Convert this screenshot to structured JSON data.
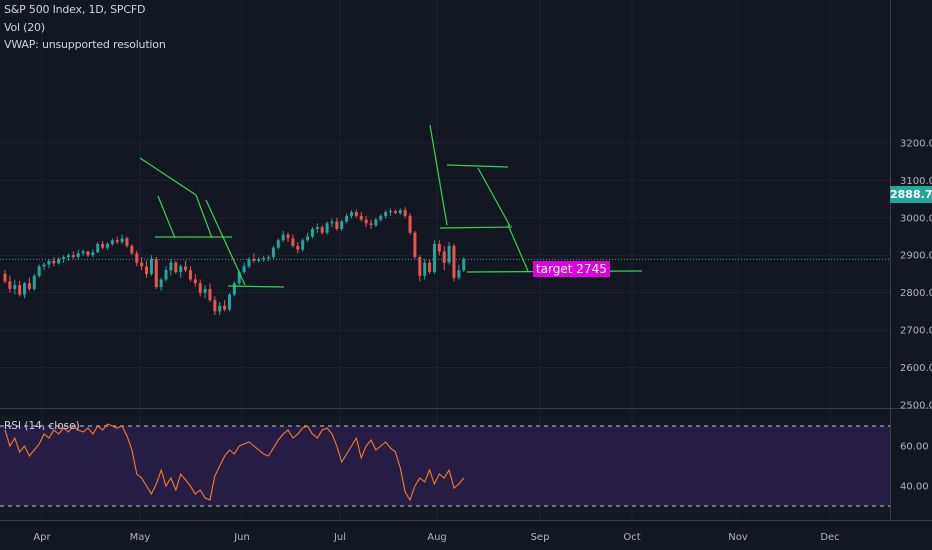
{
  "header": {
    "symbol_line": "S&P 500 Index, 1D, SPCFD",
    "vol_line": "Vol (20)",
    "vwap_line": "VWAP: unsupported resolution"
  },
  "rsi_panel": {
    "label": "RSI (14, close)"
  },
  "last_price": "2888.7",
  "annotation": {
    "text": "target 2745",
    "color": "#e100e1"
  },
  "colors": {
    "background": "#131722",
    "up": "#26a69a",
    "down": "#ef5350",
    "trendline": "#39d353",
    "rsi_line": "#f57c2c",
    "rsi_band": "#2a1e4a"
  },
  "chart_data": [
    {
      "type": "candlestick",
      "title": "S&P 500 Index, 1D, SPCFD",
      "y_ticks": [
        "3200.0",
        "3100.0",
        "3000.0",
        "2900.0",
        "2800.0",
        "2700.0",
        "2600.0",
        "2500.0"
      ],
      "ylim": [
        2500,
        3240
      ],
      "x_ticks": [
        "Apr",
        "May",
        "Jun",
        "Jul",
        "Aug",
        "Sep",
        "Oct",
        "Nov",
        "Dec"
      ],
      "last_value": 2888.7,
      "candles": [
        {
          "o": 2850,
          "h": 2860,
          "l": 2825,
          "c": 2830
        },
        {
          "o": 2830,
          "h": 2845,
          "l": 2800,
          "c": 2810
        },
        {
          "o": 2810,
          "h": 2835,
          "l": 2795,
          "c": 2820
        },
        {
          "o": 2820,
          "h": 2832,
          "l": 2790,
          "c": 2795
        },
        {
          "o": 2795,
          "h": 2828,
          "l": 2785,
          "c": 2825
        },
        {
          "o": 2825,
          "h": 2840,
          "l": 2805,
          "c": 2810
        },
        {
          "o": 2810,
          "h": 2850,
          "l": 2805,
          "c": 2845
        },
        {
          "o": 2845,
          "h": 2875,
          "l": 2840,
          "c": 2870
        },
        {
          "o": 2870,
          "h": 2880,
          "l": 2860,
          "c": 2875
        },
        {
          "o": 2875,
          "h": 2890,
          "l": 2865,
          "c": 2885
        },
        {
          "o": 2885,
          "h": 2895,
          "l": 2870,
          "c": 2878
        },
        {
          "o": 2878,
          "h": 2895,
          "l": 2875,
          "c": 2890
        },
        {
          "o": 2890,
          "h": 2900,
          "l": 2880,
          "c": 2895
        },
        {
          "o": 2895,
          "h": 2905,
          "l": 2885,
          "c": 2900
        },
        {
          "o": 2900,
          "h": 2910,
          "l": 2890,
          "c": 2895
        },
        {
          "o": 2895,
          "h": 2915,
          "l": 2890,
          "c": 2905
        },
        {
          "o": 2905,
          "h": 2915,
          "l": 2898,
          "c": 2910
        },
        {
          "o": 2910,
          "h": 2912,
          "l": 2895,
          "c": 2900
        },
        {
          "o": 2900,
          "h": 2915,
          "l": 2895,
          "c": 2908
        },
        {
          "o": 2908,
          "h": 2935,
          "l": 2905,
          "c": 2930
        },
        {
          "o": 2930,
          "h": 2938,
          "l": 2915,
          "c": 2920
        },
        {
          "o": 2920,
          "h": 2935,
          "l": 2915,
          "c": 2930
        },
        {
          "o": 2930,
          "h": 2945,
          "l": 2925,
          "c": 2940
        },
        {
          "o": 2940,
          "h": 2950,
          "l": 2930,
          "c": 2935
        },
        {
          "o": 2935,
          "h": 2955,
          "l": 2930,
          "c": 2945
        },
        {
          "o": 2945,
          "h": 2950,
          "l": 2920,
          "c": 2925
        },
        {
          "o": 2925,
          "h": 2930,
          "l": 2900,
          "c": 2905
        },
        {
          "o": 2905,
          "h": 2912,
          "l": 2870,
          "c": 2880
        },
        {
          "o": 2880,
          "h": 2895,
          "l": 2860,
          "c": 2870
        },
        {
          "o": 2870,
          "h": 2885,
          "l": 2840,
          "c": 2850
        },
        {
          "o": 2850,
          "h": 2900,
          "l": 2845,
          "c": 2890
        },
        {
          "o": 2890,
          "h": 2895,
          "l": 2810,
          "c": 2815
        },
        {
          "o": 2815,
          "h": 2840,
          "l": 2805,
          "c": 2835
        },
        {
          "o": 2835,
          "h": 2870,
          "l": 2830,
          "c": 2860
        },
        {
          "o": 2860,
          "h": 2890,
          "l": 2845,
          "c": 2880
        },
        {
          "o": 2880,
          "h": 2885,
          "l": 2850,
          "c": 2855
        },
        {
          "o": 2855,
          "h": 2875,
          "l": 2840,
          "c": 2870
        },
        {
          "o": 2870,
          "h": 2885,
          "l": 2855,
          "c": 2860
        },
        {
          "o": 2860,
          "h": 2870,
          "l": 2830,
          "c": 2835
        },
        {
          "o": 2835,
          "h": 2850,
          "l": 2815,
          "c": 2825
        },
        {
          "o": 2825,
          "h": 2835,
          "l": 2790,
          "c": 2800
        },
        {
          "o": 2800,
          "h": 2820,
          "l": 2785,
          "c": 2810
        },
        {
          "o": 2810,
          "h": 2825,
          "l": 2775,
          "c": 2780
        },
        {
          "o": 2780,
          "h": 2790,
          "l": 2740,
          "c": 2750
        },
        {
          "o": 2750,
          "h": 2775,
          "l": 2740,
          "c": 2765
        },
        {
          "o": 2765,
          "h": 2780,
          "l": 2750,
          "c": 2755
        },
        {
          "o": 2755,
          "h": 2800,
          "l": 2750,
          "c": 2795
        },
        {
          "o": 2795,
          "h": 2830,
          "l": 2790,
          "c": 2825
        },
        {
          "o": 2825,
          "h": 2860,
          "l": 2820,
          "c": 2855
        },
        {
          "o": 2855,
          "h": 2880,
          "l": 2850,
          "c": 2870
        },
        {
          "o": 2870,
          "h": 2895,
          "l": 2865,
          "c": 2890
        },
        {
          "o": 2890,
          "h": 2905,
          "l": 2880,
          "c": 2885
        },
        {
          "o": 2885,
          "h": 2895,
          "l": 2880,
          "c": 2890
        },
        {
          "o": 2890,
          "h": 2898,
          "l": 2882,
          "c": 2892
        },
        {
          "o": 2892,
          "h": 2900,
          "l": 2885,
          "c": 2895
        },
        {
          "o": 2895,
          "h": 2925,
          "l": 2890,
          "c": 2920
        },
        {
          "o": 2920,
          "h": 2945,
          "l": 2915,
          "c": 2940
        },
        {
          "o": 2940,
          "h": 2965,
          "l": 2935,
          "c": 2955
        },
        {
          "o": 2955,
          "h": 2960,
          "l": 2935,
          "c": 2945
        },
        {
          "o": 2945,
          "h": 2955,
          "l": 2920,
          "c": 2925
        },
        {
          "o": 2925,
          "h": 2935,
          "l": 2905,
          "c": 2915
        },
        {
          "o": 2915,
          "h": 2945,
          "l": 2910,
          "c": 2940
        },
        {
          "o": 2940,
          "h": 2960,
          "l": 2935,
          "c": 2950
        },
        {
          "o": 2950,
          "h": 2975,
          "l": 2945,
          "c": 2970
        },
        {
          "o": 2970,
          "h": 2985,
          "l": 2960,
          "c": 2975
        },
        {
          "o": 2975,
          "h": 2980,
          "l": 2955,
          "c": 2960
        },
        {
          "o": 2960,
          "h": 2990,
          "l": 2955,
          "c": 2985
        },
        {
          "o": 2985,
          "h": 2998,
          "l": 2975,
          "c": 2990
        },
        {
          "o": 2990,
          "h": 3000,
          "l": 2965,
          "c": 2970
        },
        {
          "o": 2970,
          "h": 2995,
          "l": 2965,
          "c": 2990
        },
        {
          "o": 2990,
          "h": 3012,
          "l": 2985,
          "c": 3005
        },
        {
          "o": 3005,
          "h": 3020,
          "l": 2998,
          "c": 3015
        },
        {
          "o": 3015,
          "h": 3022,
          "l": 3000,
          "c": 3005
        },
        {
          "o": 3005,
          "h": 3015,
          "l": 2990,
          "c": 2995
        },
        {
          "o": 2995,
          "h": 3005,
          "l": 2975,
          "c": 2985
        },
        {
          "o": 2985,
          "h": 2995,
          "l": 2970,
          "c": 2980
        },
        {
          "o": 2980,
          "h": 3000,
          "l": 2975,
          "c": 2995
        },
        {
          "o": 2995,
          "h": 3010,
          "l": 2990,
          "c": 3005
        },
        {
          "o": 3005,
          "h": 3020,
          "l": 2998,
          "c": 3015
        },
        {
          "o": 3015,
          "h": 3025,
          "l": 3005,
          "c": 3018
        },
        {
          "o": 3018,
          "h": 3022,
          "l": 3010,
          "c": 3012
        },
        {
          "o": 3012,
          "h": 3025,
          "l": 3008,
          "c": 3020
        },
        {
          "o": 3020,
          "h": 3028,
          "l": 3000,
          "c": 3005
        },
        {
          "o": 3005,
          "h": 3012,
          "l": 2955,
          "c": 2960
        },
        {
          "o": 2960,
          "h": 2965,
          "l": 2890,
          "c": 2895
        },
        {
          "o": 2895,
          "h": 2900,
          "l": 2830,
          "c": 2845
        },
        {
          "o": 2845,
          "h": 2890,
          "l": 2835,
          "c": 2880
        },
        {
          "o": 2880,
          "h": 2890,
          "l": 2850,
          "c": 2855
        },
        {
          "o": 2855,
          "h": 2940,
          "l": 2850,
          "c": 2930
        },
        {
          "o": 2930,
          "h": 2940,
          "l": 2900,
          "c": 2910
        },
        {
          "o": 2910,
          "h": 2925,
          "l": 2860,
          "c": 2880
        },
        {
          "o": 2880,
          "h": 2935,
          "l": 2875,
          "c": 2925
        },
        {
          "o": 2925,
          "h": 2930,
          "l": 2830,
          "c": 2840
        },
        {
          "o": 2840,
          "h": 2875,
          "l": 2835,
          "c": 2860
        },
        {
          "o": 2860,
          "h": 2895,
          "l": 2855,
          "c": 2889
        }
      ]
    },
    {
      "type": "line",
      "title": "RSI (14, close)",
      "y_ticks": [
        "60.00",
        "40.00"
      ],
      "ylim": [
        30,
        75
      ],
      "bands": [
        30,
        70
      ],
      "values": [
        68,
        60,
        64,
        57,
        60,
        55,
        58,
        61,
        66,
        64,
        68,
        66,
        69,
        67,
        70,
        68,
        67,
        69,
        66,
        70,
        68,
        71,
        70,
        69,
        70,
        65,
        58,
        46,
        44,
        40,
        36,
        41,
        48,
        40,
        44,
        38,
        46,
        43,
        40,
        36,
        38,
        34,
        33,
        45,
        50,
        55,
        58,
        56,
        60,
        61,
        62,
        60,
        58,
        56,
        55,
        59,
        63,
        66,
        68,
        64,
        66,
        69,
        70,
        66,
        64,
        68,
        69,
        66,
        60,
        52,
        56,
        60,
        64,
        54,
        60,
        63,
        58,
        60,
        62,
        59,
        57,
        49,
        37,
        33,
        40,
        44,
        42,
        48,
        41,
        46,
        44,
        48,
        39,
        41,
        44
      ]
    }
  ]
}
